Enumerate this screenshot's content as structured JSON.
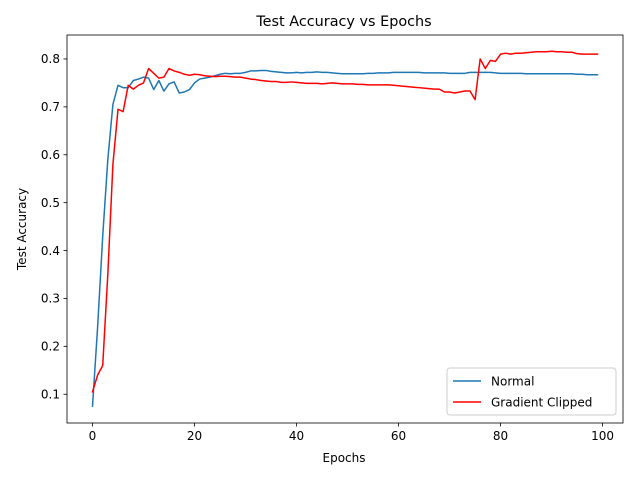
{
  "chart_data": {
    "type": "line",
    "title": "Test Accuracy vs Epochs",
    "xlabel": "Epochs",
    "ylabel": "Test Accuracy",
    "xlim": [
      -5,
      104
    ],
    "ylim": [
      0.04,
      0.85
    ],
    "xticks": [
      0,
      20,
      40,
      60,
      80,
      100
    ],
    "yticks": [
      0.1,
      0.2,
      0.3,
      0.4,
      0.5,
      0.6,
      0.7,
      0.8
    ],
    "grid": false,
    "legend": "bottom-right",
    "series": [
      {
        "name": "Normal",
        "color": "#1f77b4",
        "x": [
          0,
          1,
          2,
          3,
          4,
          5,
          6,
          7,
          8,
          9,
          10,
          11,
          12,
          13,
          14,
          15,
          16,
          17,
          18,
          19,
          20,
          21,
          22,
          23,
          24,
          25,
          26,
          27,
          28,
          29,
          30,
          31,
          32,
          33,
          34,
          35,
          36,
          37,
          38,
          39,
          40,
          41,
          42,
          43,
          44,
          45,
          46,
          47,
          48,
          49,
          50,
          51,
          52,
          53,
          54,
          55,
          56,
          57,
          58,
          59,
          60,
          61,
          62,
          63,
          64,
          65,
          66,
          67,
          68,
          69,
          70,
          71,
          72,
          73,
          74,
          75,
          76,
          77,
          78,
          79,
          80,
          81,
          82,
          83,
          84,
          85,
          86,
          87,
          88,
          89,
          90,
          91,
          92,
          93,
          94,
          95,
          96,
          97,
          98,
          99
        ],
        "values": [
          0.075,
          0.24,
          0.43,
          0.59,
          0.705,
          0.745,
          0.74,
          0.74,
          0.755,
          0.758,
          0.762,
          0.76,
          0.736,
          0.755,
          0.733,
          0.748,
          0.752,
          0.729,
          0.731,
          0.736,
          0.75,
          0.758,
          0.76,
          0.762,
          0.765,
          0.768,
          0.77,
          0.769,
          0.77,
          0.77,
          0.772,
          0.775,
          0.775,
          0.776,
          0.776,
          0.774,
          0.773,
          0.772,
          0.771,
          0.771,
          0.772,
          0.771,
          0.772,
          0.772,
          0.773,
          0.772,
          0.772,
          0.771,
          0.77,
          0.769,
          0.769,
          0.769,
          0.769,
          0.769,
          0.77,
          0.77,
          0.771,
          0.771,
          0.771,
          0.772,
          0.772,
          0.772,
          0.772,
          0.772,
          0.772,
          0.771,
          0.771,
          0.771,
          0.771,
          0.771,
          0.77,
          0.77,
          0.77,
          0.77,
          0.772,
          0.772,
          0.772,
          0.772,
          0.772,
          0.771,
          0.77,
          0.77,
          0.77,
          0.77,
          0.77,
          0.769,
          0.769,
          0.769,
          0.769,
          0.769,
          0.769,
          0.769,
          0.769,
          0.769,
          0.769,
          0.768,
          0.768,
          0.767,
          0.767,
          0.767
        ]
      },
      {
        "name": "Gradient Clipped",
        "color": "#ff0000",
        "x": [
          0,
          1,
          2,
          3,
          4,
          5,
          6,
          7,
          8,
          9,
          10,
          11,
          12,
          13,
          14,
          15,
          16,
          17,
          18,
          19,
          20,
          21,
          22,
          23,
          24,
          25,
          26,
          27,
          28,
          29,
          30,
          31,
          32,
          33,
          34,
          35,
          36,
          37,
          38,
          39,
          40,
          41,
          42,
          43,
          44,
          45,
          46,
          47,
          48,
          49,
          50,
          51,
          52,
          53,
          54,
          55,
          56,
          57,
          58,
          59,
          60,
          61,
          62,
          63,
          64,
          65,
          66,
          67,
          68,
          69,
          70,
          71,
          72,
          73,
          74,
          75,
          76,
          77,
          78,
          79,
          80,
          81,
          82,
          83,
          84,
          85,
          86,
          87,
          88,
          89,
          90,
          91,
          92,
          93,
          94,
          95,
          96,
          97,
          98,
          99
        ],
        "values": [
          0.105,
          0.14,
          0.16,
          0.35,
          0.58,
          0.695,
          0.69,
          0.745,
          0.737,
          0.745,
          0.75,
          0.78,
          0.77,
          0.76,
          0.762,
          0.78,
          0.775,
          0.772,
          0.768,
          0.766,
          0.768,
          0.767,
          0.765,
          0.764,
          0.763,
          0.764,
          0.764,
          0.763,
          0.762,
          0.762,
          0.76,
          0.758,
          0.757,
          0.755,
          0.754,
          0.753,
          0.753,
          0.751,
          0.751,
          0.752,
          0.751,
          0.75,
          0.749,
          0.749,
          0.749,
          0.748,
          0.749,
          0.75,
          0.749,
          0.748,
          0.748,
          0.748,
          0.747,
          0.747,
          0.746,
          0.746,
          0.746,
          0.746,
          0.746,
          0.745,
          0.744,
          0.743,
          0.742,
          0.741,
          0.74,
          0.739,
          0.738,
          0.737,
          0.737,
          0.731,
          0.731,
          0.729,
          0.731,
          0.733,
          0.733,
          0.715,
          0.8,
          0.78,
          0.797,
          0.795,
          0.81,
          0.812,
          0.81,
          0.812,
          0.812,
          0.813,
          0.814,
          0.815,
          0.815,
          0.815,
          0.816,
          0.815,
          0.815,
          0.814,
          0.814,
          0.811,
          0.81,
          0.81,
          0.81,
          0.81
        ]
      }
    ]
  }
}
